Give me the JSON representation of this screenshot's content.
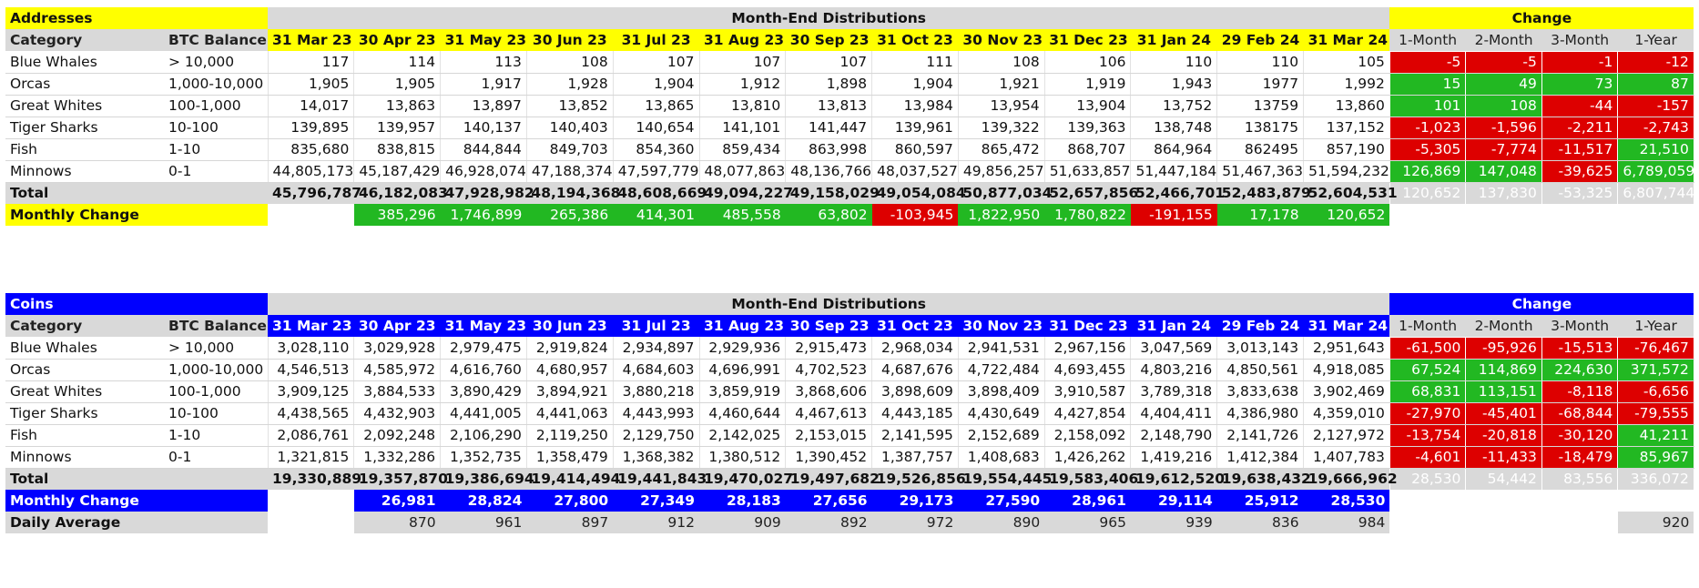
{
  "addresses": {
    "title": "Addresses",
    "section_header": "Month-End Distributions",
    "change_header": "Change",
    "col_category": "Category",
    "col_btc_balance": "BTC Balance",
    "dates": [
      "31 Mar 23",
      "30 Apr 23",
      "31 May 23",
      "30 Jun 23",
      "31 Jul 23",
      "31 Aug 23",
      "30 Sep 23",
      "31 Oct 23",
      "30 Nov 23",
      "31 Dec 23",
      "31 Jan 24",
      "29 Feb 24",
      "31 Mar 24"
    ],
    "change_cols": [
      "1-Month",
      "2-Month",
      "3-Month",
      "1-Year"
    ],
    "rows": [
      {
        "category": "Blue Whales",
        "balance": "> 10,000",
        "values": [
          "117",
          "114",
          "113",
          "108",
          "107",
          "107",
          "107",
          "111",
          "108",
          "106",
          "110",
          "110",
          "105"
        ],
        "changes": [
          "-5",
          "-5",
          "-1",
          "-12"
        ]
      },
      {
        "category": "Orcas",
        "balance": "1,000-10,000",
        "values": [
          "1,905",
          "1,905",
          "1,917",
          "1,928",
          "1,904",
          "1,912",
          "1,898",
          "1,904",
          "1,921",
          "1,919",
          "1,943",
          "1977",
          "1,992"
        ],
        "changes": [
          "15",
          "49",
          "73",
          "87"
        ]
      },
      {
        "category": "Great Whites",
        "balance": "100-1,000",
        "values": [
          "14,017",
          "13,863",
          "13,897",
          "13,852",
          "13,865",
          "13,810",
          "13,813",
          "13,984",
          "13,954",
          "13,904",
          "13,752",
          "13759",
          "13,860"
        ],
        "changes": [
          "101",
          "108",
          "-44",
          "-157"
        ]
      },
      {
        "category": "Tiger Sharks",
        "balance": "10-100",
        "values": [
          "139,895",
          "139,957",
          "140,137",
          "140,403",
          "140,654",
          "141,101",
          "141,447",
          "139,961",
          "139,322",
          "139,363",
          "138,748",
          "138175",
          "137,152"
        ],
        "changes": [
          "-1,023",
          "-1,596",
          "-2,211",
          "-2,743"
        ]
      },
      {
        "category": "Fish",
        "balance": "1-10",
        "values": [
          "835,680",
          "838,815",
          "844,844",
          "849,703",
          "854,360",
          "859,434",
          "863,998",
          "860,597",
          "865,472",
          "868,707",
          "864,964",
          "862495",
          "857,190"
        ],
        "changes": [
          "-5,305",
          "-7,774",
          "-11,517",
          "21,510"
        ]
      },
      {
        "category": "Minnows",
        "balance": "0-1",
        "values": [
          "44,805,173",
          "45,187,429",
          "46,928,074",
          "47,188,374",
          "47,597,779",
          "48,077,863",
          "48,136,766",
          "48,037,527",
          "49,856,257",
          "51,633,857",
          "51,447,184",
          "51,467,363",
          "51,594,232"
        ],
        "changes": [
          "126,869",
          "147,048",
          "-39,625",
          "6,789,059"
        ]
      }
    ],
    "total": {
      "label": "Total",
      "values": [
        "45,796,787",
        "46,182,083",
        "47,928,982",
        "48,194,368",
        "48,608,669",
        "49,094,227",
        "49,158,029",
        "49,054,084",
        "50,877,034",
        "52,657,856",
        "52,466,701",
        "52,483,879",
        "52,604,531"
      ],
      "changes": [
        "120,652",
        "137,830",
        "-53,325",
        "6,807,744"
      ]
    },
    "monthly_change": {
      "label": "Monthly Change",
      "values": [
        "",
        "385,296",
        "1,746,899",
        "265,386",
        "414,301",
        "485,558",
        "63,802",
        "-103,945",
        "1,822,950",
        "1,780,822",
        "-191,155",
        "17,178",
        "120,652"
      ]
    }
  },
  "coins": {
    "title": "Coins",
    "section_header": "Month-End Distributions",
    "change_header": "Change",
    "col_category": "Category",
    "col_btc_balance": "BTC Balance",
    "dates": [
      "31 Mar 23",
      "30 Apr 23",
      "31 May 23",
      "30 Jun 23",
      "31 Jul 23",
      "31 Aug 23",
      "30 Sep 23",
      "31 Oct 23",
      "30 Nov 23",
      "31 Dec 23",
      "31 Jan 24",
      "29 Feb 24",
      "31 Mar 24"
    ],
    "change_cols": [
      "1-Month",
      "2-Month",
      "3-Month",
      "1-Year"
    ],
    "rows": [
      {
        "category": "Blue Whales",
        "balance": "> 10,000",
        "values": [
          "3,028,110",
          "3,029,928",
          "2,979,475",
          "2,919,824",
          "2,934,897",
          "2,929,936",
          "2,915,473",
          "2,968,034",
          "2,941,531",
          "2,967,156",
          "3,047,569",
          "3,013,143",
          "2,951,643"
        ],
        "changes": [
          "-61,500",
          "-95,926",
          "-15,513",
          "-76,467"
        ]
      },
      {
        "category": "Orcas",
        "balance": "1,000-10,000",
        "values": [
          "4,546,513",
          "4,585,972",
          "4,616,760",
          "4,680,957",
          "4,684,603",
          "4,696,991",
          "4,702,523",
          "4,687,676",
          "4,722,484",
          "4,693,455",
          "4,803,216",
          "4,850,561",
          "4,918,085"
        ],
        "changes": [
          "67,524",
          "114,869",
          "224,630",
          "371,572"
        ]
      },
      {
        "category": "Great Whites",
        "balance": "100-1,000",
        "values": [
          "3,909,125",
          "3,884,533",
          "3,890,429",
          "3,894,921",
          "3,880,218",
          "3,859,919",
          "3,868,606",
          "3,898,609",
          "3,898,409",
          "3,910,587",
          "3,789,318",
          "3,833,638",
          "3,902,469"
        ],
        "changes": [
          "68,831",
          "113,151",
          "-8,118",
          "-6,656"
        ]
      },
      {
        "category": "Tiger Sharks",
        "balance": "10-100",
        "values": [
          "4,438,565",
          "4,432,903",
          "4,441,005",
          "4,441,063",
          "4,443,993",
          "4,460,644",
          "4,467,613",
          "4,443,185",
          "4,430,649",
          "4,427,854",
          "4,404,411",
          "4,386,980",
          "4,359,010"
        ],
        "changes": [
          "-27,970",
          "-45,401",
          "-68,844",
          "-79,555"
        ]
      },
      {
        "category": "Fish",
        "balance": "1-10",
        "values": [
          "2,086,761",
          "2,092,248",
          "2,106,290",
          "2,119,250",
          "2,129,750",
          "2,142,025",
          "2,153,015",
          "2,141,595",
          "2,152,689",
          "2,158,092",
          "2,148,790",
          "2,141,726",
          "2,127,972"
        ],
        "changes": [
          "-13,754",
          "-20,818",
          "-30,120",
          "41,211"
        ]
      },
      {
        "category": "Minnows",
        "balance": "0-1",
        "values": [
          "1,321,815",
          "1,332,286",
          "1,352,735",
          "1,358,479",
          "1,368,382",
          "1,380,512",
          "1,390,452",
          "1,387,757",
          "1,408,683",
          "1,426,262",
          "1,419,216",
          "1,412,384",
          "1,407,783"
        ],
        "changes": [
          "-4,601",
          "-11,433",
          "-18,479",
          "85,967"
        ]
      }
    ],
    "total": {
      "label": "Total",
      "values": [
        "19,330,889",
        "19,357,870",
        "19,386,694",
        "19,414,494",
        "19,441,843",
        "19,470,027",
        "19,497,682",
        "19,526,856",
        "19,554,445",
        "19,583,406",
        "19,612,520",
        "19,638,432",
        "19,666,962"
      ],
      "changes": [
        "28,530",
        "54,442",
        "83,556",
        "336,072"
      ]
    },
    "monthly_change": {
      "label": "Monthly Change",
      "values": [
        "",
        "26,981",
        "28,824",
        "27,800",
        "27,349",
        "28,183",
        "27,656",
        "29,173",
        "27,590",
        "28,961",
        "29,114",
        "25,912",
        "28,530"
      ]
    },
    "daily_average": {
      "label": "Daily Average",
      "values": [
        "",
        "870",
        "961",
        "897",
        "912",
        "909",
        "892",
        "972",
        "890",
        "965",
        "939",
        "836",
        "984"
      ],
      "one_year": "920"
    }
  }
}
